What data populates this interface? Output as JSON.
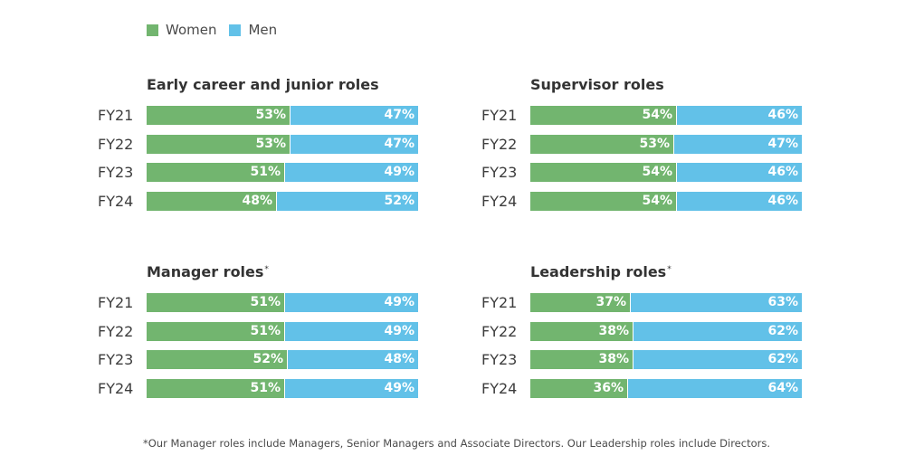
{
  "legend": {
    "women": "Women",
    "men": "Men"
  },
  "colors": {
    "women": "#72b56f",
    "men": "#62c1e8"
  },
  "chart_data": [
    {
      "type": "bar",
      "stacked": true,
      "orientation": "horizontal",
      "title": "Early career and junior roles",
      "title_mark": "",
      "categories": [
        "FY21",
        "FY22",
        "FY23",
        "FY24"
      ],
      "series": [
        {
          "name": "Women",
          "values": [
            53,
            53,
            51,
            48
          ],
          "labels": [
            "53%",
            "53%",
            "51%",
            "48%"
          ]
        },
        {
          "name": "Men",
          "values": [
            47,
            47,
            49,
            52
          ],
          "labels": [
            "47%",
            "47%",
            "49%",
            "52%"
          ]
        }
      ],
      "xlim": [
        0,
        100
      ]
    },
    {
      "type": "bar",
      "stacked": true,
      "orientation": "horizontal",
      "title": "Supervisor roles",
      "title_mark": "",
      "categories": [
        "FY21",
        "FY22",
        "FY23",
        "FY24"
      ],
      "series": [
        {
          "name": "Women",
          "values": [
            54,
            53,
            54,
            54
          ],
          "labels": [
            "54%",
            "53%",
            "54%",
            "54%"
          ]
        },
        {
          "name": "Men",
          "values": [
            46,
            47,
            46,
            46
          ],
          "labels": [
            "46%",
            "47%",
            "46%",
            "46%"
          ]
        }
      ],
      "xlim": [
        0,
        100
      ]
    },
    {
      "type": "bar",
      "stacked": true,
      "orientation": "horizontal",
      "title": "Manager roles",
      "title_mark": "*",
      "categories": [
        "FY21",
        "FY22",
        "FY23",
        "FY24"
      ],
      "series": [
        {
          "name": "Women",
          "values": [
            51,
            51,
            52,
            51
          ],
          "labels": [
            "51%",
            "51%",
            "52%",
            "51%"
          ]
        },
        {
          "name": "Men",
          "values": [
            49,
            49,
            48,
            49
          ],
          "labels": [
            "49%",
            "49%",
            "48%",
            "49%"
          ]
        }
      ],
      "xlim": [
        0,
        100
      ]
    },
    {
      "type": "bar",
      "stacked": true,
      "orientation": "horizontal",
      "title": "Leadership roles",
      "title_mark": "*",
      "categories": [
        "FY21",
        "FY22",
        "FY23",
        "FY24"
      ],
      "series": [
        {
          "name": "Women",
          "values": [
            37,
            38,
            38,
            36
          ],
          "labels": [
            "37%",
            "38%",
            "38%",
            "36%"
          ]
        },
        {
          "name": "Men",
          "values": [
            63,
            62,
            62,
            64
          ],
          "labels": [
            "63%",
            "62%",
            "62%",
            "64%"
          ]
        }
      ],
      "xlim": [
        0,
        100
      ]
    }
  ],
  "footnote": "*Our Manager roles include Managers, Senior Managers and Associate Directors. Our Leadership roles include Directors."
}
